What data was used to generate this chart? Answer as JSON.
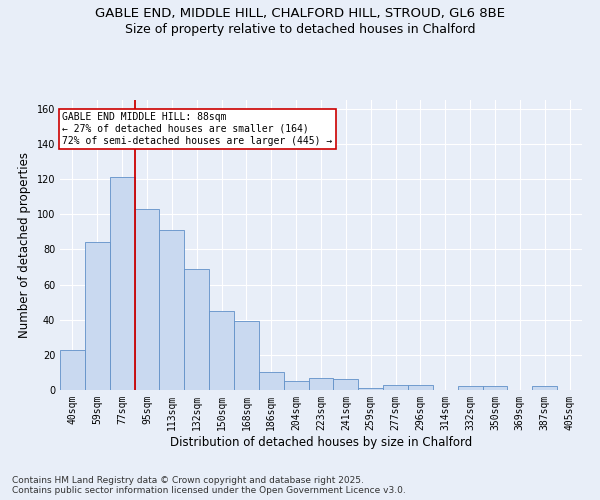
{
  "title_line1": "GABLE END, MIDDLE HILL, CHALFORD HILL, STROUD, GL6 8BE",
  "title_line2": "Size of property relative to detached houses in Chalford",
  "xlabel": "Distribution of detached houses by size in Chalford",
  "ylabel": "Number of detached properties",
  "categories": [
    "40sqm",
    "59sqm",
    "77sqm",
    "95sqm",
    "113sqm",
    "132sqm",
    "150sqm",
    "168sqm",
    "186sqm",
    "204sqm",
    "223sqm",
    "241sqm",
    "259sqm",
    "277sqm",
    "296sqm",
    "314sqm",
    "332sqm",
    "350sqm",
    "369sqm",
    "387sqm",
    "405sqm"
  ],
  "values": [
    23,
    84,
    121,
    103,
    91,
    69,
    45,
    39,
    10,
    5,
    7,
    6,
    1,
    3,
    3,
    0,
    2,
    2,
    0,
    2,
    0
  ],
  "bar_color": "#c9d9f0",
  "bar_edge_color": "#6090c8",
  "background_color": "#e8eef8",
  "grid_color": "#ffffff",
  "redline_index": 2,
  "redline_label": "GABLE END MIDDLE HILL: 88sqm\n← 27% of detached houses are smaller (164)\n72% of semi-detached houses are larger (445) →",
  "annotation_box_color": "#ffffff",
  "annotation_box_edge": "#cc0000",
  "ylim": [
    0,
    165
  ],
  "yticks": [
    0,
    20,
    40,
    60,
    80,
    100,
    120,
    140,
    160
  ],
  "footnote": "Contains HM Land Registry data © Crown copyright and database right 2025.\nContains public sector information licensed under the Open Government Licence v3.0.",
  "title_fontsize": 9.5,
  "subtitle_fontsize": 9,
  "label_fontsize": 8.5,
  "tick_fontsize": 7,
  "footnote_fontsize": 6.5,
  "annot_fontsize": 7
}
